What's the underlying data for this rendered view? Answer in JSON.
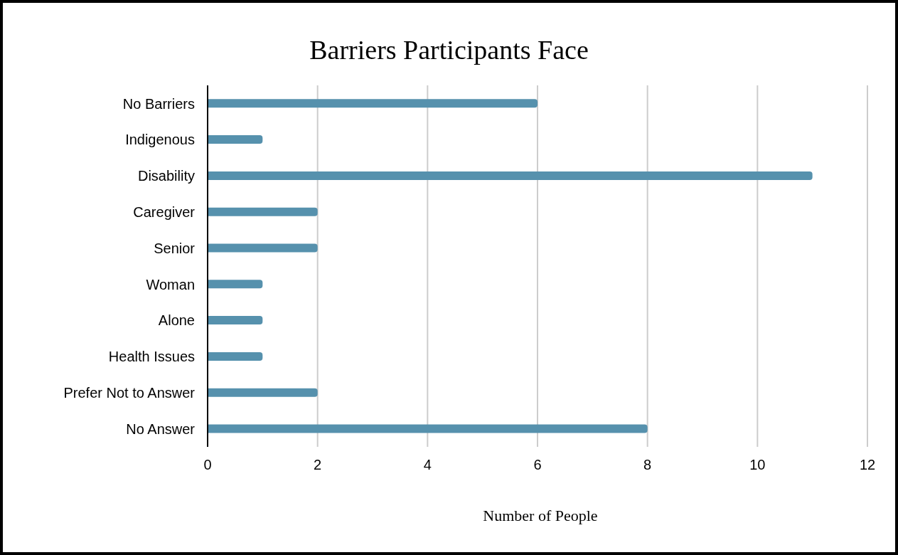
{
  "chart_data": {
    "type": "bar",
    "orientation": "horizontal",
    "title": "Barriers Participants Face",
    "xlabel": "Number of People",
    "categories": [
      "No Barriers",
      "Indigenous",
      "Disability",
      "Caregiver",
      "Senior",
      "Woman",
      "Alone",
      "Health Issues",
      "Prefer Not to Answer",
      "No Answer"
    ],
    "values": [
      6,
      1,
      11,
      2,
      2,
      1,
      1,
      1,
      2,
      8
    ],
    "color": "#5691ad",
    "xlim": [
      0,
      12
    ],
    "xticks": [
      0,
      2,
      4,
      6,
      8,
      10,
      12
    ],
    "grid": "x"
  }
}
